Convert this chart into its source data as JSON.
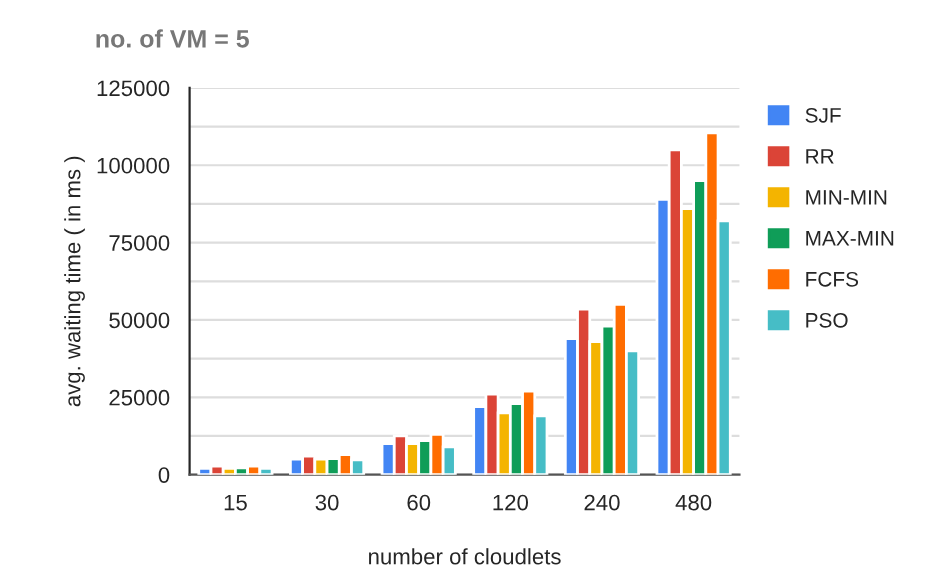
{
  "chart_data": {
    "type": "bar",
    "title": "no. of VM = 5",
    "xlabel": "number of cloudlets",
    "ylabel": "avg. waiting time ( in ms )",
    "categories": [
      "15",
      "30",
      "60",
      "120",
      "240",
      "480"
    ],
    "series": [
      {
        "name": "SJF",
        "color": "#4285f4",
        "values": [
          2000,
          5000,
          10000,
          22000,
          44000,
          89000
        ]
      },
      {
        "name": "RR",
        "color": "#db4437",
        "values": [
          2800,
          6000,
          12500,
          26000,
          53500,
          105000
        ]
      },
      {
        "name": "MIN-MIN",
        "color": "#f4b400",
        "values": [
          2000,
          5000,
          10000,
          20000,
          43000,
          86000
        ]
      },
      {
        "name": "MAX-MIN",
        "color": "#0f9d58",
        "values": [
          2200,
          5200,
          11000,
          23000,
          48000,
          95000
        ]
      },
      {
        "name": "FCFS",
        "color": "#ff6d01",
        "values": [
          2800,
          6500,
          13000,
          27000,
          55000,
          110500
        ]
      },
      {
        "name": "PSO",
        "color": "#46bdc6",
        "values": [
          2000,
          4800,
          9000,
          19000,
          40000,
          82000
        ]
      }
    ],
    "ylim": [
      0,
      125000
    ],
    "yticks": [
      0,
      {
        "value": 12500,
        "label": null
      },
      25000,
      {
        "value": 37500,
        "label": null
      },
      50000,
      {
        "value": 62500,
        "label": null
      },
      75000,
      {
        "value": 87500,
        "label": null
      },
      100000,
      {
        "value": 112500,
        "label": null
      },
      125000
    ],
    "grid": "y",
    "legend": "right"
  }
}
